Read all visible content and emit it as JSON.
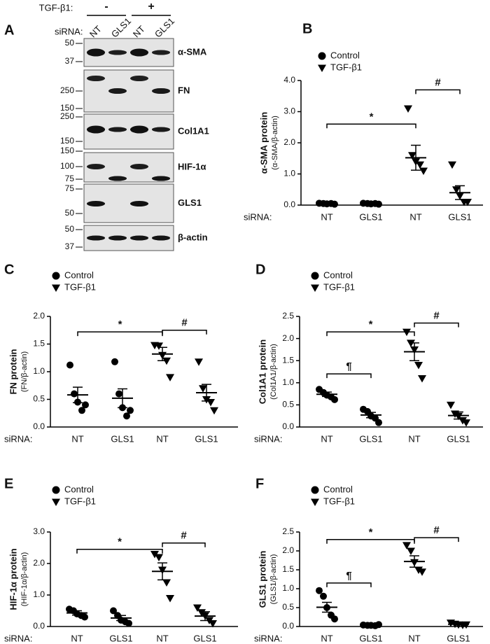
{
  "blot": {
    "letter": "A",
    "treatment_label": "TGF-β1:",
    "treatment_levels": [
      "-",
      "+"
    ],
    "sirna_label": "siRNA:",
    "lanes": [
      "NT",
      "GLS1",
      "NT",
      "GLS1"
    ],
    "strips": [
      {
        "protein": "α-SMA",
        "markers": [
          "50",
          "37"
        ]
      },
      {
        "protein": "FN",
        "markers": [
          "250",
          "150"
        ]
      },
      {
        "protein": "Col1A1",
        "markers": [
          "250",
          "150"
        ]
      },
      {
        "protein": "HIF-1α",
        "markers": [
          "150",
          "100",
          "75"
        ]
      },
      {
        "protein": "GLS1",
        "markers": [
          "75",
          "50"
        ]
      },
      {
        "protein": "β-actin",
        "markers": [
          "50",
          "37"
        ]
      }
    ]
  },
  "chart_data": [
    {
      "type": "dot",
      "letter": "B",
      "ylabel": "α-SMA protein",
      "ylabel_sub": "(α-SMA/β-actin)",
      "xlabel": "siRNA:",
      "categories": [
        "NT",
        "GLS1",
        "NT",
        "GLS1"
      ],
      "ylim": [
        0,
        4
      ],
      "yticks": [
        {
          "value": 0,
          "label": "0.0"
        },
        {
          "value": 1,
          "label": "1.0"
        },
        {
          "value": 2,
          "label": "2.0"
        },
        {
          "value": 3,
          "label": "3.0"
        },
        {
          "value": 4,
          "label": "4.0"
        }
      ],
      "series": [
        {
          "name": "Control",
          "marker": "circle",
          "color": "#000000",
          "values": [
            [
              0.06,
              0.05,
              0.04,
              0.05,
              0.03
            ],
            [
              0.06,
              0.05,
              0.04,
              0.05,
              0.03
            ],
            null,
            null
          ],
          "mean": [
            0.05,
            0.05,
            null,
            null
          ],
          "sem": [
            0.01,
            0.01,
            null,
            null
          ]
        },
        {
          "name": "TGF-β1",
          "marker": "triangle",
          "color": "#000000",
          "values": [
            null,
            null,
            [
              3.1,
              1.6,
              1.4,
              1.3,
              1.1
            ],
            [
              1.3,
              0.5,
              0.3,
              0.1,
              0.1
            ]
          ],
          "mean": [
            null,
            null,
            1.52,
            0.4
          ],
          "sem": [
            null,
            null,
            0.4,
            0.22
          ]
        }
      ],
      "annotations": [
        {
          "label": "*",
          "from": 0,
          "to": 2,
          "y": 2.6
        },
        {
          "label": "#",
          "from": 2,
          "to": 3,
          "y": 3.7
        }
      ]
    },
    {
      "type": "dot",
      "letter": "C",
      "ylabel": "FN protein",
      "ylabel_sub": "(FN/β-actin)",
      "xlabel": "siRNA:",
      "categories": [
        "NT",
        "GLS1",
        "NT",
        "GLS1"
      ],
      "ylim": [
        0,
        2
      ],
      "yticks": [
        {
          "value": 0,
          "label": "0.0"
        },
        0.5,
        {
          "value": 1,
          "label": "1.0"
        },
        1.5,
        {
          "value": 2,
          "label": "2.0"
        }
      ],
      "series": [
        {
          "name": "Control",
          "marker": "circle",
          "color": "#000000",
          "values": [
            [
              1.12,
              0.6,
              0.45,
              0.3,
              0.4
            ],
            [
              1.18,
              0.6,
              0.35,
              0.2,
              0.3
            ],
            null,
            null
          ],
          "mean": [
            0.58,
            0.52,
            null,
            null
          ],
          "sem": [
            0.14,
            0.17,
            null,
            null
          ]
        },
        {
          "name": "TGF-β1",
          "marker": "triangle",
          "color": "#000000",
          "values": [
            null,
            null,
            [
              1.48,
              1.47,
              1.3,
              1.2,
              0.9
            ],
            [
              1.18,
              0.7,
              0.5,
              0.45,
              0.3
            ]
          ],
          "mean": [
            null,
            null,
            1.32,
            0.62
          ],
          "sem": [
            null,
            null,
            0.12,
            0.15
          ]
        }
      ],
      "annotations": [
        {
          "label": "*",
          "from": 0,
          "to": 2,
          "y": 1.72
        },
        {
          "label": "#",
          "from": 2,
          "to": 3,
          "y": 1.75
        }
      ]
    },
    {
      "type": "dot",
      "letter": "D",
      "ylabel": "Col1A1  protein",
      "ylabel_sub": "(Col1A1/β-actin)",
      "xlabel": "siRNA:",
      "categories": [
        "NT",
        "GLS1",
        "NT",
        "GLS1"
      ],
      "ylim": [
        0,
        2.5
      ],
      "yticks": [
        {
          "value": 0,
          "label": "0.0"
        },
        0.5,
        {
          "value": 1,
          "label": "1.0"
        },
        1.5,
        {
          "value": 2,
          "label": "2.0"
        },
        2.5
      ],
      "series": [
        {
          "name": "Control",
          "marker": "circle",
          "color": "#000000",
          "values": [
            [
              0.85,
              0.78,
              0.72,
              0.68,
              0.62
            ],
            [
              0.4,
              0.35,
              0.25,
              0.2,
              0.1
            ],
            null,
            null
          ],
          "mean": [
            0.74,
            0.27,
            null,
            null
          ],
          "sem": [
            0.05,
            0.06,
            null,
            null
          ]
        },
        {
          "name": "TGF-β1",
          "marker": "triangle",
          "color": "#000000",
          "values": [
            null,
            null,
            [
              2.15,
              1.9,
              1.75,
              1.4,
              1.1
            ],
            [
              0.5,
              0.3,
              0.25,
              0.15,
              0.1
            ]
          ],
          "mean": [
            null,
            null,
            1.7,
            0.26
          ],
          "sem": [
            null,
            null,
            0.2,
            0.08
          ]
        }
      ],
      "annotations": [
        {
          "label": "¶",
          "from": 0,
          "to": 1,
          "y": 1.2
        },
        {
          "label": "*",
          "from": 0,
          "to": 2,
          "y": 2.15
        },
        {
          "label": "#",
          "from": 2,
          "to": 3,
          "y": 2.35
        }
      ]
    },
    {
      "type": "dot",
      "letter": "E",
      "ylabel": "HIF-1α protein",
      "ylabel_sub": "(HIF-1α/β-actin)",
      "xlabel": "siRNA:",
      "categories": [
        "NT",
        "GLS1",
        "NT",
        "GLS1"
      ],
      "ylim": [
        0,
        3
      ],
      "yticks": [
        {
          "value": 0,
          "label": "0.0"
        },
        {
          "value": 1,
          "label": "1.0"
        },
        {
          "value": 2,
          "label": "2.0"
        },
        {
          "value": 3,
          "label": "3.0"
        }
      ],
      "series": [
        {
          "name": "Control",
          "marker": "circle",
          "color": "#000000",
          "values": [
            [
              0.55,
              0.5,
              0.4,
              0.35,
              0.3
            ],
            [
              0.5,
              0.35,
              0.2,
              0.15,
              0.1
            ],
            null,
            null
          ],
          "mean": [
            0.43,
            0.27,
            null,
            null
          ],
          "sem": [
            0.07,
            0.08,
            null,
            null
          ]
        },
        {
          "name": "TGF-β1",
          "marker": "triangle",
          "color": "#000000",
          "values": [
            null,
            null,
            [
              2.3,
              2.2,
              1.8,
              1.4,
              0.9
            ],
            [
              0.6,
              0.45,
              0.35,
              0.2,
              0.1
            ]
          ],
          "mean": [
            null,
            null,
            1.75,
            0.33
          ],
          "sem": [
            null,
            null,
            0.27,
            0.14
          ]
        }
      ],
      "annotations": [
        {
          "label": "*",
          "from": 0,
          "to": 2,
          "y": 2.45
        },
        {
          "label": "#",
          "from": 2,
          "to": 3,
          "y": 2.65
        }
      ]
    },
    {
      "type": "dot",
      "letter": "F",
      "ylabel": "GLS1 protein",
      "ylabel_sub": "(GLS1/β-actin)",
      "xlabel": "siRNA:",
      "categories": [
        "NT",
        "GLS1",
        "NT",
        "GLS1"
      ],
      "ylim": [
        0,
        2.5
      ],
      "yticks": [
        {
          "value": 0,
          "label": "0.0"
        },
        0.5,
        {
          "value": 1,
          "label": "1.0"
        },
        1.5,
        {
          "value": 2,
          "label": "2.0"
        },
        2.5
      ],
      "series": [
        {
          "name": "Control",
          "marker": "circle",
          "color": "#000000",
          "values": [
            [
              0.95,
              0.8,
              0.5,
              0.3,
              0.2
            ],
            [
              0.04,
              0.03,
              0.03,
              0.02,
              0.05
            ],
            null,
            null
          ],
          "mean": [
            0.51,
            0.03,
            null,
            null
          ],
          "sem": [
            0.13,
            0.01,
            null,
            null
          ]
        },
        {
          "name": "TGF-β1",
          "marker": "triangle",
          "color": "#000000",
          "values": [
            null,
            null,
            [
              2.15,
              2.0,
              1.7,
              1.5,
              1.45
            ],
            [
              0.1,
              0.07,
              0.05,
              0.04,
              0.05
            ]
          ],
          "mean": [
            null,
            null,
            1.72,
            0.06
          ],
          "sem": [
            null,
            null,
            0.15,
            0.01
          ]
        }
      ],
      "annotations": [
        {
          "label": "¶",
          "from": 0,
          "to": 1,
          "y": 1.15
        },
        {
          "label": "*",
          "from": 0,
          "to": 2,
          "y": 2.3
        },
        {
          "label": "#",
          "from": 2,
          "to": 3,
          "y": 2.35
        }
      ]
    }
  ]
}
